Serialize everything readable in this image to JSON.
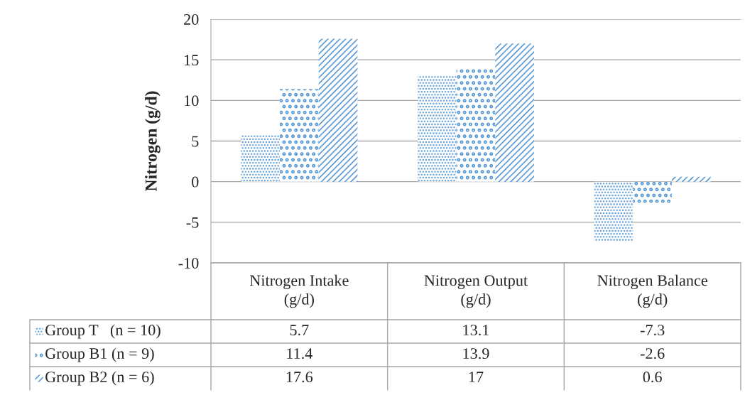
{
  "chart_data": {
    "type": "bar",
    "ylabel": "Nitrogen (g/d)",
    "categories": [
      "Nitrogen Intake\n(g/d)",
      "Nitrogen Output\n(g/d)",
      "Nitrogen Balance\n(g/d)"
    ],
    "series": [
      {
        "name": "Group T   (n = 10)",
        "color": "#5b9bd5",
        "values": [
          5.7,
          13.1,
          -7.3
        ]
      },
      {
        "name": "Group B1 (n = 9)",
        "color": "#5b9bd5",
        "values": [
          11.4,
          13.9,
          -2.6
        ]
      },
      {
        "name": "Group B2 (n = 6)",
        "color": "#5b9bd5",
        "values": [
          17.6,
          17,
          0.6
        ]
      }
    ],
    "ylim": [
      -10,
      20
    ],
    "yticks": [
      -10,
      -5,
      0,
      5,
      10,
      15,
      20
    ],
    "grid": "y",
    "data_labels": true,
    "legend": "bottom"
  }
}
